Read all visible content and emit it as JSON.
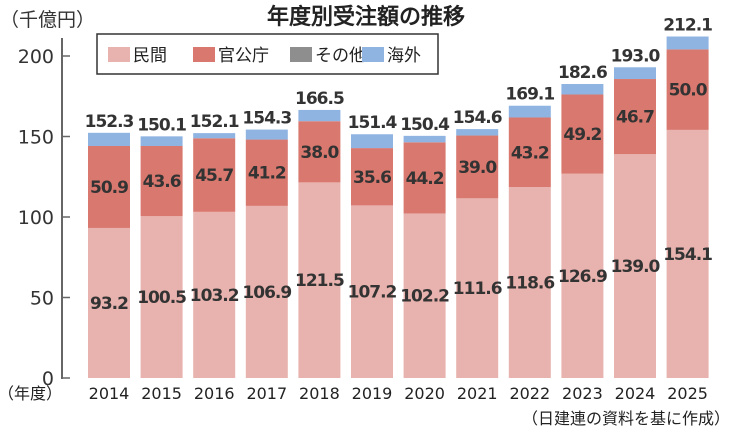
{
  "chart_data": {
    "type": "bar",
    "stacked": true,
    "title": "年度別受注額の推移",
    "ylabel": "（千億円）",
    "xlabel": "（年度）",
    "source": "（日建連の資料を基に作成）",
    "ylim": [
      0,
      215
    ],
    "yticks": [
      0,
      50,
      100,
      150,
      200
    ],
    "legend_placement": "top-left",
    "categories": [
      "2014",
      "2015",
      "2016",
      "2017",
      "2018",
      "2019",
      "2020",
      "2021",
      "2022",
      "2023",
      "2024",
      "2025"
    ],
    "series": [
      {
        "name": "民間",
        "color": "#e8b3ae",
        "values": [
          93.2,
          100.5,
          103.2,
          106.9,
          121.5,
          107.2,
          102.2,
          111.6,
          118.6,
          126.9,
          139.0,
          154.1
        ]
      },
      {
        "name": "官公庁",
        "color": "#d9786e",
        "values": [
          50.9,
          43.6,
          45.7,
          41.2,
          38.0,
          35.6,
          44.2,
          39.0,
          43.2,
          49.2,
          46.7,
          50.0
        ]
      },
      {
        "name": "その他",
        "color": "#8e8e8e",
        "values": [
          0,
          0,
          0,
          0,
          0,
          0,
          0,
          0,
          0,
          0,
          0,
          0
        ]
      },
      {
        "name": "海外",
        "color": "#8fb4e2",
        "values": [
          8.2,
          6.0,
          3.2,
          6.2,
          7.0,
          8.6,
          4.0,
          4.0,
          7.3,
          6.5,
          7.3,
          8.0
        ]
      }
    ],
    "totals": [
      152.3,
      150.1,
      152.1,
      154.3,
      166.5,
      151.4,
      150.4,
      154.6,
      169.1,
      182.6,
      193.0,
      212.1
    ],
    "value_labels": {
      "民間": [
        "93.2",
        "100.5",
        "103.2",
        "106.9",
        "121.5",
        "107.2",
        "102.2",
        "111.6",
        "118.6",
        "126.9",
        "139.0",
        "154.1"
      ],
      "官公庁": [
        "50.9",
        "43.6",
        "45.7",
        "41.2",
        "38.0",
        "35.6",
        "44.2",
        "39.0",
        "43.2",
        "49.2",
        "46.7",
        "50.0"
      ]
    },
    "total_labels": [
      "152.3",
      "150.1",
      "152.1",
      "154.3",
      "166.5",
      "151.4",
      "150.4",
      "154.6",
      "169.1",
      "182.6",
      "193.0",
      "212.1"
    ]
  }
}
